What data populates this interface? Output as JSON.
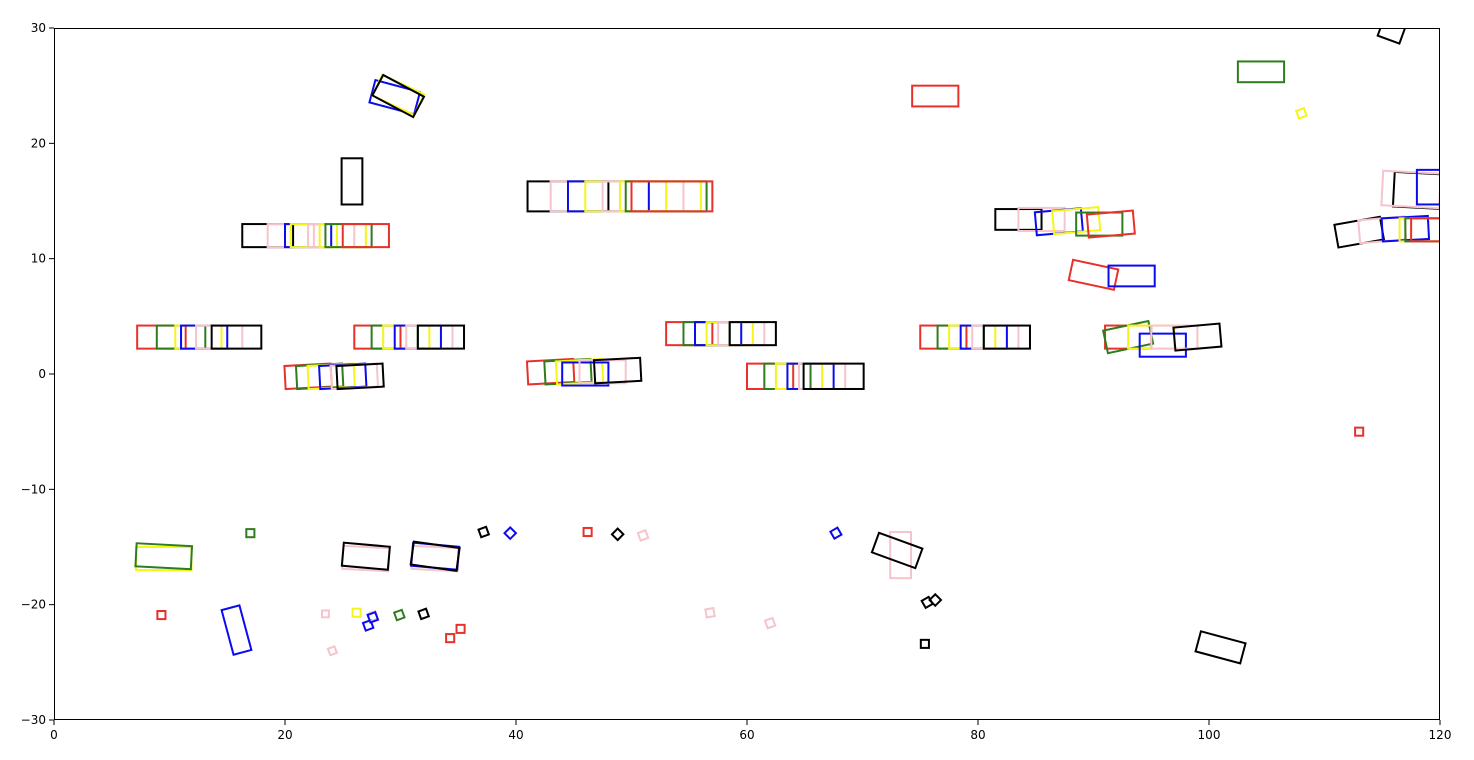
{
  "chart_data": {
    "type": "scatter",
    "title": "",
    "xlabel": "",
    "ylabel": "",
    "xlim": [
      0,
      120
    ],
    "ylim": [
      -30,
      30
    ],
    "grid": false,
    "legend": "none",
    "x_ticks": [
      0,
      20,
      40,
      60,
      80,
      100,
      120
    ],
    "y_ticks": [
      -30,
      -20,
      -10,
      0,
      10,
      20,
      30
    ],
    "x_tick_labels": [
      "0",
      "20",
      "40",
      "60",
      "80",
      "100",
      "120"
    ],
    "y_tick_labels": [
      "−30",
      "−20",
      "−10",
      "0",
      "10",
      "20",
      "30"
    ],
    "colors": {
      "red": "#e8312a",
      "green": "#2e7d1c",
      "blue": "#0b0bf0",
      "yellow": "#f5f51a",
      "pink": "#f5c4cc",
      "black": "#000000"
    },
    "mark_shape": "rectangle outline",
    "mark_fields": [
      "center_x",
      "center_y",
      "length",
      "width",
      "rotation_deg",
      "color"
    ],
    "marks": [
      [
        9.3,
        3.2,
        4.2,
        2.0,
        0,
        "red"
      ],
      [
        11.0,
        3.2,
        4.2,
        2.0,
        0,
        "green"
      ],
      [
        12.5,
        3.2,
        4.0,
        2.0,
        0,
        "yellow"
      ],
      [
        13.0,
        3.2,
        4.0,
        2.0,
        0,
        "blue"
      ],
      [
        14.3,
        3.2,
        4.0,
        2.0,
        0,
        "pink"
      ],
      [
        15.8,
        3.2,
        4.3,
        2.0,
        0,
        "black"
      ],
      [
        28.0,
        3.2,
        4.0,
        2.0,
        0,
        "red"
      ],
      [
        29.5,
        3.2,
        4.0,
        2.0,
        0,
        "green"
      ],
      [
        30.5,
        3.2,
        4.0,
        2.0,
        0,
        "yellow"
      ],
      [
        31.5,
        3.2,
        4.0,
        2.0,
        0,
        "blue"
      ],
      [
        32.5,
        3.2,
        4.0,
        2.0,
        0,
        "pink"
      ],
      [
        33.5,
        3.2,
        4.0,
        2.0,
        0,
        "black"
      ],
      [
        55.0,
        3.5,
        4.0,
        2.0,
        0,
        "red"
      ],
      [
        56.5,
        3.5,
        4.0,
        2.0,
        0,
        "green"
      ],
      [
        57.5,
        3.5,
        4.0,
        2.0,
        0,
        "blue"
      ],
      [
        58.5,
        3.5,
        4.0,
        2.0,
        0,
        "yellow"
      ],
      [
        59.5,
        3.5,
        4.0,
        2.0,
        0,
        "pink"
      ],
      [
        60.5,
        3.5,
        4.0,
        2.0,
        0,
        "black"
      ],
      [
        77.0,
        3.2,
        4.0,
        2.0,
        0,
        "red"
      ],
      [
        78.5,
        3.2,
        4.0,
        2.0,
        0,
        "green"
      ],
      [
        79.5,
        3.2,
        4.0,
        2.0,
        0,
        "yellow"
      ],
      [
        80.5,
        3.2,
        4.0,
        2.0,
        0,
        "blue"
      ],
      [
        81.5,
        3.2,
        4.0,
        2.0,
        0,
        "pink"
      ],
      [
        82.5,
        3.2,
        4.0,
        2.0,
        0,
        "black"
      ],
      [
        93.0,
        3.2,
        4.0,
        2.0,
        0,
        "red"
      ],
      [
        93.0,
        3.2,
        4.0,
        2.0,
        12,
        "green"
      ],
      [
        95.0,
        3.2,
        4.0,
        2.0,
        0,
        "yellow"
      ],
      [
        96.0,
        2.5,
        4.0,
        2.0,
        0,
        "blue"
      ],
      [
        97.0,
        3.2,
        4.0,
        2.0,
        0,
        "pink"
      ],
      [
        99.0,
        3.2,
        4.0,
        2.0,
        5,
        "black"
      ],
      [
        22.0,
        -0.2,
        4.0,
        2.0,
        3,
        "red"
      ],
      [
        23.0,
        -0.2,
        4.0,
        2.0,
        3,
        "green"
      ],
      [
        24.0,
        -0.2,
        4.0,
        2.0,
        3,
        "yellow"
      ],
      [
        25.0,
        -0.2,
        4.0,
        2.0,
        3,
        "blue"
      ],
      [
        26.0,
        -0.2,
        4.0,
        2.0,
        3,
        "pink"
      ],
      [
        26.5,
        -0.2,
        4.0,
        2.0,
        3,
        "black"
      ],
      [
        43.0,
        0.2,
        4.0,
        2.0,
        3,
        "red"
      ],
      [
        44.5,
        0.2,
        4.0,
        2.0,
        3,
        "green"
      ],
      [
        45.5,
        0.2,
        4.0,
        2.0,
        3,
        "yellow"
      ],
      [
        46.0,
        0.0,
        4.0,
        2.0,
        0,
        "blue"
      ],
      [
        47.5,
        0.2,
        4.0,
        2.0,
        0,
        "pink"
      ],
      [
        48.8,
        0.3,
        4.0,
        2.0,
        3,
        "black"
      ],
      [
        62.0,
        -0.2,
        4.0,
        2.2,
        0,
        "red"
      ],
      [
        63.5,
        -0.2,
        4.0,
        2.2,
        0,
        "green"
      ],
      [
        64.5,
        -0.2,
        4.0,
        2.2,
        0,
        "yellow"
      ],
      [
        65.5,
        -0.2,
        4.0,
        2.2,
        0,
        "blue"
      ],
      [
        66.5,
        -0.2,
        4.0,
        2.2,
        0,
        "pink"
      ],
      [
        67.5,
        -0.2,
        5.2,
        2.2,
        0,
        "black"
      ],
      [
        44.5,
        15.4,
        7.0,
        2.6,
        0,
        "black"
      ],
      [
        46.5,
        15.4,
        7.0,
        2.6,
        0,
        "pink"
      ],
      [
        48.0,
        15.4,
        7.0,
        2.6,
        0,
        "blue"
      ],
      [
        49.5,
        15.4,
        7.0,
        2.6,
        0,
        "yellow"
      ],
      [
        51.0,
        15.4,
        7.0,
        2.6,
        0,
        "pink"
      ],
      [
        52.5,
        15.4,
        7.0,
        2.6,
        0,
        "yellow"
      ],
      [
        53.0,
        15.4,
        7.0,
        2.6,
        0,
        "green"
      ],
      [
        53.5,
        15.4,
        7.0,
        2.6,
        0,
        "red"
      ],
      [
        18.5,
        12.0,
        4.4,
        2.0,
        0,
        "black"
      ],
      [
        20.5,
        12.0,
        4.0,
        2.0,
        0,
        "pink"
      ],
      [
        22.0,
        12.0,
        4.0,
        2.0,
        0,
        "blue"
      ],
      [
        22.5,
        12.0,
        4.0,
        2.0,
        0,
        "yellow"
      ],
      [
        24.0,
        12.0,
        4.0,
        2.0,
        0,
        "pink"
      ],
      [
        25.0,
        12.0,
        4.0,
        2.0,
        0,
        "yellow"
      ],
      [
        25.5,
        12.0,
        4.0,
        2.0,
        0,
        "green"
      ],
      [
        27.0,
        12.0,
        4.0,
        2.0,
        0,
        "red"
      ],
      [
        25.8,
        16.7,
        4.0,
        1.8,
        90,
        "black"
      ],
      [
        29.5,
        24.0,
        4.0,
        2.0,
        -15,
        "blue"
      ],
      [
        29.8,
        24.2,
        4.0,
        2.0,
        -25,
        "yellow"
      ],
      [
        29.8,
        24.1,
        4.0,
        2.0,
        -28,
        "black"
      ],
      [
        76.3,
        24.1,
        4.0,
        1.8,
        0,
        "red"
      ],
      [
        104.5,
        26.2,
        4.0,
        1.8,
        0,
        "green"
      ],
      [
        83.5,
        13.4,
        4.0,
        1.8,
        0,
        "black"
      ],
      [
        85.5,
        13.4,
        4.0,
        2.0,
        0,
        "pink"
      ],
      [
        87.0,
        13.2,
        4.0,
        2.0,
        5,
        "blue"
      ],
      [
        88.5,
        13.3,
        4.0,
        2.0,
        5,
        "yellow"
      ],
      [
        90.5,
        13.0,
        4.0,
        2.0,
        0,
        "green"
      ],
      [
        91.5,
        13.0,
        4.0,
        2.0,
        5,
        "red"
      ],
      [
        90.0,
        8.6,
        4.0,
        1.8,
        -12,
        "red"
      ],
      [
        93.3,
        8.5,
        4.0,
        1.8,
        0,
        "blue"
      ],
      [
        113.0,
        12.3,
        4.0,
        2.0,
        10,
        "black"
      ],
      [
        115.0,
        12.5,
        4.0,
        2.0,
        5,
        "pink"
      ],
      [
        117.0,
        12.6,
        4.0,
        2.0,
        3,
        "blue"
      ],
      [
        118.5,
        12.5,
        4.0,
        2.0,
        0,
        "yellow"
      ],
      [
        119.0,
        12.5,
        4.0,
        2.0,
        0,
        "green"
      ],
      [
        119.5,
        12.5,
        4.0,
        2.0,
        0,
        "red"
      ],
      [
        118.5,
        15.9,
        5.0,
        3.0,
        -3,
        "black"
      ],
      [
        117.5,
        16.0,
        5.0,
        3.0,
        -3,
        "pink"
      ],
      [
        120.5,
        16.2,
        5.0,
        3.0,
        0,
        "blue"
      ],
      [
        115.8,
        29.7,
        2.0,
        1.5,
        -20,
        "black"
      ],
      [
        9.5,
        -16.0,
        4.8,
        2.0,
        0,
        "yellow"
      ],
      [
        9.5,
        -15.8,
        4.8,
        2.0,
        -3,
        "green"
      ],
      [
        27.0,
        -16.0,
        4.0,
        2.0,
        -3,
        "pink"
      ],
      [
        27.0,
        -15.8,
        4.0,
        2.0,
        -5,
        "black"
      ],
      [
        33.0,
        -16.0,
        4.0,
        2.0,
        -3,
        "pink"
      ],
      [
        33.0,
        -15.8,
        4.0,
        2.0,
        -5,
        "blue"
      ],
      [
        33.0,
        -15.8,
        4.0,
        2.0,
        -8,
        "black"
      ],
      [
        15.8,
        -22.2,
        4.0,
        1.6,
        -75,
        "blue"
      ],
      [
        73.3,
        -15.7,
        4.0,
        1.8,
        90,
        "pink"
      ],
      [
        73.0,
        -15.3,
        4.0,
        1.8,
        -20,
        "black"
      ],
      [
        101.0,
        -23.7,
        4.0,
        1.8,
        -15,
        "black"
      ],
      [
        17.0,
        -13.8,
        0.7,
        0.7,
        0,
        "green"
      ],
      [
        9.3,
        -20.9,
        0.7,
        0.7,
        0,
        "red"
      ],
      [
        23.5,
        -20.8,
        0.6,
        0.6,
        0,
        "pink"
      ],
      [
        24.1,
        -24.0,
        0.6,
        0.6,
        20,
        "pink"
      ],
      [
        26.2,
        -20.7,
        0.7,
        0.7,
        0,
        "yellow"
      ],
      [
        27.2,
        -21.8,
        0.7,
        0.7,
        20,
        "blue"
      ],
      [
        27.6,
        -21.0,
        0.7,
        0.7,
        20,
        "pink"
      ],
      [
        27.6,
        -21.1,
        0.7,
        0.7,
        20,
        "blue"
      ],
      [
        29.9,
        -20.9,
        0.7,
        0.7,
        20,
        "green"
      ],
      [
        32.0,
        -20.8,
        0.7,
        0.7,
        20,
        "black"
      ],
      [
        34.3,
        -22.9,
        0.7,
        0.7,
        0,
        "red"
      ],
      [
        35.2,
        -22.1,
        0.7,
        0.7,
        0,
        "red"
      ],
      [
        37.2,
        -13.7,
        0.7,
        0.7,
        20,
        "black"
      ],
      [
        39.5,
        -13.8,
        0.7,
        0.7,
        45,
        "blue"
      ],
      [
        46.2,
        -13.7,
        0.7,
        0.7,
        0,
        "red"
      ],
      [
        48.8,
        -13.9,
        0.7,
        0.7,
        45,
        "black"
      ],
      [
        51.0,
        -14.0,
        0.7,
        0.7,
        20,
        "pink"
      ],
      [
        56.8,
        -20.7,
        0.7,
        0.7,
        10,
        "pink"
      ],
      [
        62.0,
        -21.6,
        0.7,
        0.7,
        20,
        "pink"
      ],
      [
        67.7,
        -13.8,
        0.7,
        0.7,
        30,
        "blue"
      ],
      [
        75.6,
        -19.8,
        0.7,
        0.7,
        30,
        "black"
      ],
      [
        76.3,
        -19.6,
        0.7,
        0.7,
        45,
        "black"
      ],
      [
        75.4,
        -23.4,
        0.7,
        0.7,
        0,
        "black"
      ],
      [
        113.0,
        -5.0,
        0.7,
        0.7,
        0,
        "red"
      ],
      [
        108.0,
        22.6,
        0.7,
        0.7,
        20,
        "yellow"
      ]
    ]
  }
}
